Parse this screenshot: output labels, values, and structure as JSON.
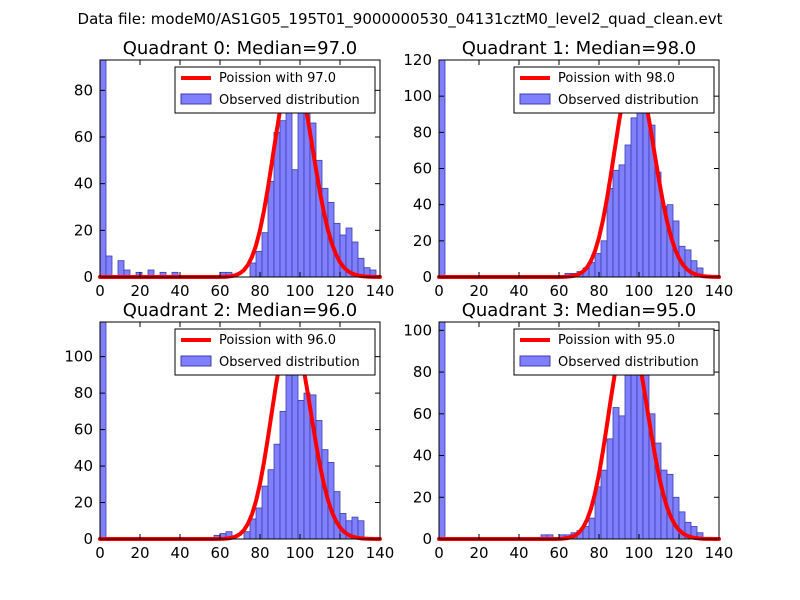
{
  "figure": {
    "suptitle": "Data file: modeM0/AS1G05_195T01_9000000530_04131cztM0_level2_quad_clean.evt",
    "colors": {
      "bar_fill": "#8080ff",
      "bar_edge": "#3d3dab",
      "poisson_line": "#ff0000",
      "axes": "#000000"
    }
  },
  "chart_data": [
    {
      "type": "bar",
      "panel": "Quadrant 0",
      "title": "Quadrant 0: Median=97.0",
      "legend": [
        "Poission with 97.0",
        "Observed distribution"
      ],
      "legend_position": "top-right",
      "xlim": [
        0,
        140
      ],
      "ylim": [
        0,
        93
      ],
      "xticks": [
        0,
        20,
        40,
        60,
        80,
        100,
        120,
        140
      ],
      "yticks": [
        0,
        20,
        40,
        60,
        80
      ],
      "bin_width": 3,
      "bars": [
        [
          0,
          93
        ],
        [
          3,
          9
        ],
        [
          9,
          7
        ],
        [
          12,
          3
        ],
        [
          18,
          2
        ],
        [
          24,
          3
        ],
        [
          30,
          2
        ],
        [
          36,
          2
        ],
        [
          60,
          2
        ],
        [
          63,
          2
        ],
        [
          75,
          6
        ],
        [
          78,
          11
        ],
        [
          81,
          19
        ],
        [
          84,
          41
        ],
        [
          87,
          62
        ],
        [
          90,
          67
        ],
        [
          93,
          89
        ],
        [
          96,
          46
        ],
        [
          99,
          86
        ],
        [
          102,
          87
        ],
        [
          105,
          66
        ],
        [
          108,
          50
        ],
        [
          111,
          38
        ],
        [
          114,
          32
        ],
        [
          117,
          23
        ],
        [
          120,
          18
        ],
        [
          123,
          21
        ],
        [
          126,
          15
        ],
        [
          129,
          8
        ],
        [
          132,
          4
        ],
        [
          135,
          3
        ]
      ],
      "poisson_mean": 97.0,
      "poisson_peak": 89
    },
    {
      "type": "bar",
      "panel": "Quadrant 1",
      "title": "Quadrant 1: Median=98.0",
      "legend": [
        "Poission with 98.0",
        "Observed distribution"
      ],
      "legend_position": "top-right",
      "xlim": [
        0,
        140
      ],
      "ylim": [
        0,
        120
      ],
      "xticks": [
        0,
        20,
        40,
        60,
        80,
        100,
        120,
        140
      ],
      "yticks": [
        0,
        20,
        40,
        60,
        80,
        100,
        120
      ],
      "bin_width": 3,
      "bars": [
        [
          0,
          120
        ],
        [
          63,
          2
        ],
        [
          66,
          2
        ],
        [
          69,
          3
        ],
        [
          72,
          5
        ],
        [
          75,
          8
        ],
        [
          78,
          13
        ],
        [
          81,
          20
        ],
        [
          84,
          49
        ],
        [
          87,
          59
        ],
        [
          90,
          62
        ],
        [
          93,
          73
        ],
        [
          96,
          88
        ],
        [
          99,
          113
        ],
        [
          102,
          100
        ],
        [
          105,
          84
        ],
        [
          108,
          58
        ],
        [
          111,
          39
        ],
        [
          114,
          40
        ],
        [
          117,
          31
        ],
        [
          120,
          17
        ],
        [
          123,
          15
        ],
        [
          126,
          9
        ],
        [
          129,
          5
        ]
      ],
      "poisson_mean": 98.0,
      "poisson_peak": 115
    },
    {
      "type": "bar",
      "panel": "Quadrant 2",
      "title": "Quadrant 2: Median=96.0",
      "legend": [
        "Poission with 96.0",
        "Observed distribution"
      ],
      "legend_position": "top-right",
      "xlim": [
        0,
        140
      ],
      "ylim": [
        0,
        119
      ],
      "xticks": [
        0,
        20,
        40,
        60,
        80,
        100,
        120,
        140
      ],
      "yticks": [
        0,
        20,
        40,
        60,
        80,
        100
      ],
      "bin_width": 3,
      "bars": [
        [
          0,
          119
        ],
        [
          57,
          2
        ],
        [
          60,
          3
        ],
        [
          63,
          4
        ],
        [
          72,
          4
        ],
        [
          75,
          11
        ],
        [
          78,
          17
        ],
        [
          81,
          29
        ],
        [
          84,
          38
        ],
        [
          87,
          52
        ],
        [
          90,
          70
        ],
        [
          93,
          95
        ],
        [
          96,
          93
        ],
        [
          99,
          76
        ],
        [
          102,
          80
        ],
        [
          105,
          79
        ],
        [
          108,
          65
        ],
        [
          111,
          49
        ],
        [
          114,
          42
        ],
        [
          117,
          26
        ],
        [
          120,
          14
        ],
        [
          123,
          10
        ],
        [
          126,
          12
        ],
        [
          129,
          10
        ]
      ],
      "poisson_mean": 96.0,
      "poisson_peak": 114
    },
    {
      "type": "bar",
      "panel": "Quadrant 3",
      "title": "Quadrant 3: Median=95.0",
      "legend": [
        "Poission with 95.0",
        "Observed distribution"
      ],
      "legend_position": "top-right",
      "xlim": [
        0,
        140
      ],
      "ylim": [
        0,
        104
      ],
      "xticks": [
        0,
        20,
        40,
        60,
        80,
        100,
        120,
        140
      ],
      "yticks": [
        0,
        20,
        40,
        60,
        80,
        100
      ],
      "bin_width": 3,
      "bars": [
        [
          0,
          104
        ],
        [
          51,
          2
        ],
        [
          54,
          2
        ],
        [
          60,
          2
        ],
        [
          63,
          2
        ],
        [
          66,
          3
        ],
        [
          69,
          4
        ],
        [
          72,
          6
        ],
        [
          75,
          10
        ],
        [
          78,
          25
        ],
        [
          81,
          33
        ],
        [
          84,
          48
        ],
        [
          87,
          63
        ],
        [
          90,
          59
        ],
        [
          93,
          79
        ],
        [
          96,
          90
        ],
        [
          99,
          90
        ],
        [
          102,
          84
        ],
        [
          105,
          60
        ],
        [
          108,
          46
        ],
        [
          111,
          33
        ],
        [
          114,
          31
        ],
        [
          117,
          20
        ],
        [
          120,
          13
        ],
        [
          123,
          8
        ],
        [
          126,
          6
        ],
        [
          129,
          3
        ]
      ],
      "poisson_mean": 95.0,
      "poisson_peak": 100
    }
  ]
}
